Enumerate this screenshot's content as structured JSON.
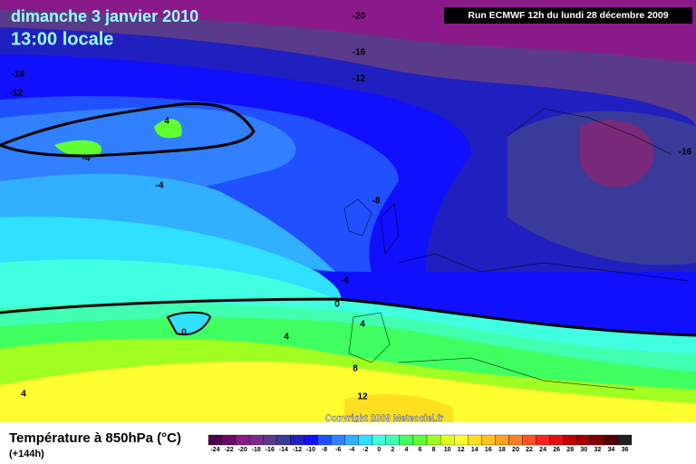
{
  "header": {
    "title": "dimanche 3 janvier 2010",
    "time": "13:00 locale",
    "run": "Run ECMWF 12h du lundi 28 décembre 2009"
  },
  "copyright": "Copyright 2009 Meteociel.fr",
  "map": {
    "contour_labels": [
      "-20",
      "-16",
      "-12",
      "-16",
      "-12",
      "4",
      "-4",
      "-4",
      "-8",
      "-16",
      "-4",
      "0",
      "4",
      "0",
      "4",
      "8",
      "12",
      "4"
    ]
  },
  "legend": {
    "title": "Température à 850hPa (°C)",
    "lead": "(+144h)",
    "stops": [
      {
        "value": -24,
        "color": "#4a004a"
      },
      {
        "value": -22,
        "color": "#6a0a6a"
      },
      {
        "value": -20,
        "color": "#8a1a8a"
      },
      {
        "value": -18,
        "color": "#7a2a8a"
      },
      {
        "value": -16,
        "color": "#5a3a8a"
      },
      {
        "value": -14,
        "color": "#3a3a9a"
      },
      {
        "value": -12,
        "color": "#2020c0"
      },
      {
        "value": -10,
        "color": "#1010ff"
      },
      {
        "value": -8,
        "color": "#2050ff"
      },
      {
        "value": -6,
        "color": "#3080ff"
      },
      {
        "value": -4,
        "color": "#30b0ff"
      },
      {
        "value": -2,
        "color": "#30e0ff"
      },
      {
        "value": 0,
        "color": "#40ffe0"
      },
      {
        "value": 2,
        "color": "#40ffb0"
      },
      {
        "value": 4,
        "color": "#40ff60"
      },
      {
        "value": 6,
        "color": "#60ff30"
      },
      {
        "value": 8,
        "color": "#a0ff20"
      },
      {
        "value": 10,
        "color": "#e0ff20"
      },
      {
        "value": 12,
        "color": "#ffff30"
      },
      {
        "value": 14,
        "color": "#ffe020"
      },
      {
        "value": 16,
        "color": "#ffc020"
      },
      {
        "value": 18,
        "color": "#ffa020"
      },
      {
        "value": 20,
        "color": "#ff8020"
      },
      {
        "value": 22,
        "color": "#ff5020"
      },
      {
        "value": 24,
        "color": "#ff2020"
      },
      {
        "value": 26,
        "color": "#e01010"
      },
      {
        "value": 28,
        "color": "#c00000"
      },
      {
        "value": 30,
        "color": "#a00000"
      },
      {
        "value": 32,
        "color": "#800000"
      },
      {
        "value": 34,
        "color": "#500000"
      },
      {
        "value": 36,
        "color": "#202020"
      }
    ]
  }
}
